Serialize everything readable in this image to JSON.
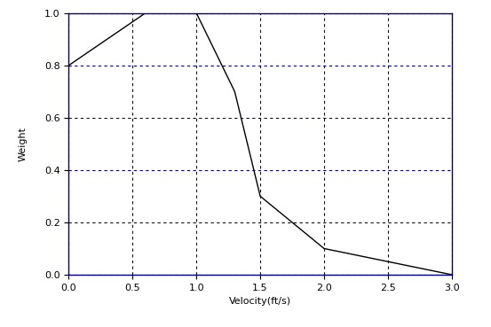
{
  "chart_data": {
    "type": "line",
    "x_label": "Velocity(ft/s)",
    "y_label": "Weight",
    "x": [
      0.0,
      0.6,
      1.0,
      1.3,
      1.5,
      2.0,
      3.0
    ],
    "values": [
      0.8,
      1.0,
      1.0,
      0.7,
      0.3,
      0.1,
      0.0
    ],
    "color": "#000000",
    "line_style": "solid",
    "xlim": [
      0,
      3
    ],
    "ylim": [
      0,
      1
    ],
    "xticks": [
      {
        "value": 0,
        "label": "0.0"
      },
      0.5,
      {
        "value": 1,
        "label": "1.0"
      },
      1.5,
      {
        "value": 2,
        "label": "2.0"
      },
      2.5,
      {
        "value": 3,
        "label": "3.0"
      }
    ],
    "yticks": [
      {
        "value": 0,
        "label": "0.0"
      },
      0.2,
      0.4,
      0.6,
      0.8,
      {
        "value": 1,
        "label": "1.0"
      }
    ],
    "grid": true
  }
}
